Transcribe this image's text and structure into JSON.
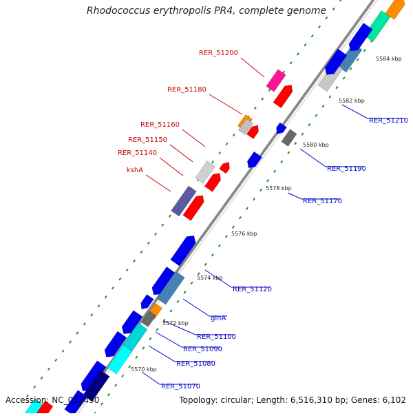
{
  "title": "Rhodococcus erythropolis PR4, complete genome",
  "footer": {
    "accession": "Accession: NC_012490",
    "summary": "Topology: circular; Length: 6,516,310 bp; Genes: 6,102"
  },
  "colors": {
    "backbone": "#8a8a8a",
    "tick": "#1f8f1f",
    "red_label": "#cc0000",
    "blue_label": "#0000cc"
  },
  "scale_labels": [
    "5570 kbp",
    "5572 kbp",
    "5574 kbp",
    "5576 kbp",
    "5578 kbp",
    "5580 kbp",
    "5582 kbp",
    "5584 kbp"
  ],
  "genes_left": [
    {
      "name": "RER_51200"
    },
    {
      "name": "RER_51180"
    },
    {
      "name": "RER_51160"
    },
    {
      "name": "RER_51150"
    },
    {
      "name": "RER_51140"
    },
    {
      "name": "kshA"
    }
  ],
  "genes_right": [
    {
      "name": "RER_51210"
    },
    {
      "name": "RER_51190"
    },
    {
      "name": "RER_51170"
    },
    {
      "name": "RER_51120"
    },
    {
      "name": "glnA"
    },
    {
      "name": "RER_51100"
    },
    {
      "name": "RER_51090"
    },
    {
      "name": "RER_51080"
    },
    {
      "name": "RER_51070"
    }
  ]
}
